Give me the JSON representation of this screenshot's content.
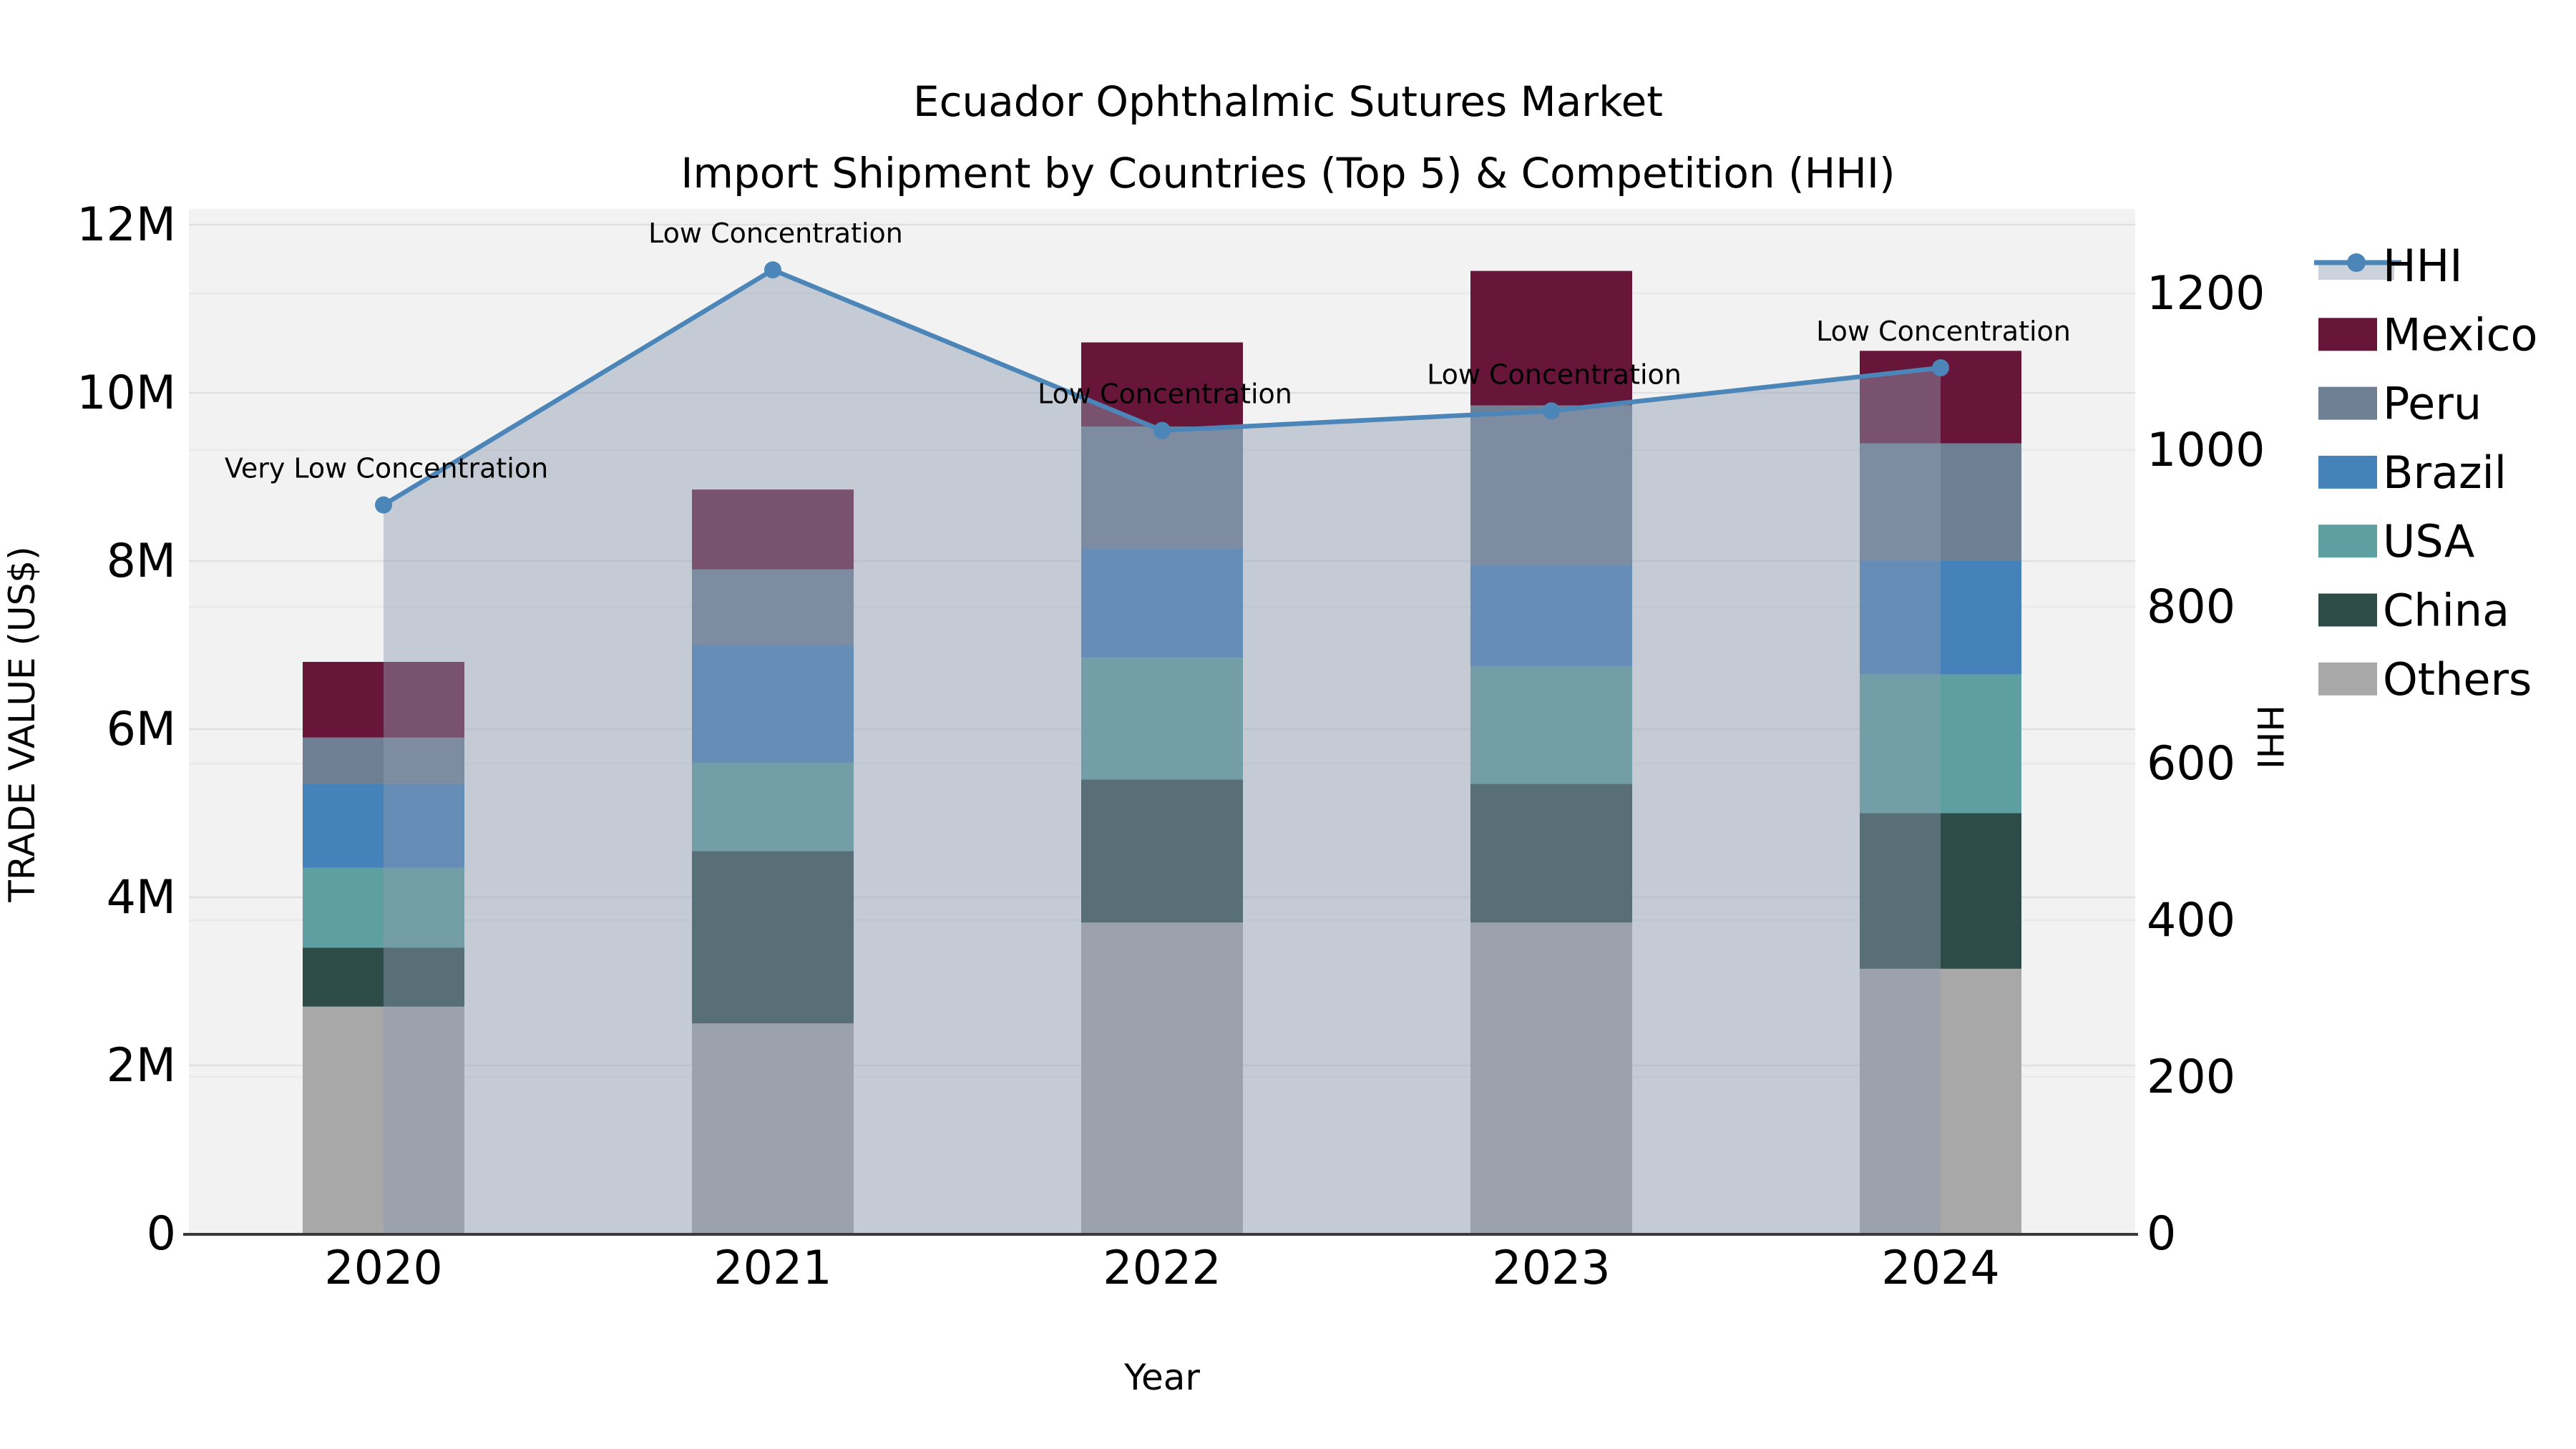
{
  "chart_data": {
    "type": "combo_stacked_bar_line",
    "title": "Ecuador Ophthalmic Sutures Market",
    "subtitle": "Import Shipment by Countries (Top 5) & Competition (HHI)",
    "xlabel": "Year",
    "ylabel_left": "TRADE VALUE (US$)",
    "ylabel_right": "HHI",
    "categories": [
      "2020",
      "2021",
      "2022",
      "2023",
      "2024"
    ],
    "bar_unit": "USD millions (left axis)",
    "series": [
      {
        "name": "Others",
        "color": "#A8A8A8",
        "values": [
          2.7,
          2.5,
          3.7,
          3.7,
          3.15
        ]
      },
      {
        "name": "China",
        "color": "#2D4C48",
        "values": [
          0.7,
          2.05,
          1.7,
          1.65,
          1.85
        ]
      },
      {
        "name": "USA",
        "color": "#5EA0A1",
        "values": [
          0.95,
          1.05,
          1.45,
          1.4,
          1.65
        ]
      },
      {
        "name": "Brazil",
        "color": "#4482B9",
        "values": [
          1.0,
          1.4,
          1.3,
          1.2,
          1.35
        ]
      },
      {
        "name": "Peru",
        "color": "#6F8094",
        "values": [
          0.55,
          0.9,
          1.45,
          1.9,
          1.4
        ]
      },
      {
        "name": "Mexico",
        "color": "#67163A",
        "values": [
          0.9,
          0.95,
          1.0,
          1.6,
          1.1
        ]
      }
    ],
    "stack_totals": [
      6.8,
      8.85,
      10.6,
      11.45,
      10.5
    ],
    "hhi": {
      "name": "HHI",
      "line_color": "#4C86B9",
      "area_fill": "rgba(143,155,177,0.45)",
      "values": [
        930,
        1230,
        1025,
        1050,
        1105
      ],
      "annotations": [
        "Very Low Concentration",
        "Low Concentration",
        "Low Concentration",
        "Low Concentration",
        "Low Concentration"
      ]
    },
    "left_axis": {
      "ticks": [
        "0",
        "2M",
        "4M",
        "6M",
        "8M",
        "10M",
        "12M"
      ],
      "tick_values": [
        0,
        2,
        4,
        6,
        8,
        10,
        12
      ],
      "range": [
        0,
        12.2
      ]
    },
    "right_axis": {
      "ticks": [
        "0",
        "200",
        "400",
        "600",
        "800",
        "1000",
        "1200"
      ],
      "tick_values": [
        0,
        200,
        400,
        600,
        800,
        1000,
        1200
      ],
      "range": [
        0,
        1310
      ]
    },
    "legend": [
      {
        "label": "HHI",
        "type": "line",
        "color": "#4C86B9"
      },
      {
        "label": "Mexico",
        "type": "box",
        "color": "#67163A"
      },
      {
        "label": "Peru",
        "type": "box",
        "color": "#6F8094"
      },
      {
        "label": "Brazil",
        "type": "box",
        "color": "#4482B9"
      },
      {
        "label": "USA",
        "type": "box",
        "color": "#5EA0A1"
      },
      {
        "label": "China",
        "type": "box",
        "color": "#2D4C48"
      },
      {
        "label": "Others",
        "type": "box",
        "color": "#A8A8A8"
      }
    ],
    "legend_position": "outside-top-right",
    "grid": true,
    "plot_bg": "#F2F2F3"
  },
  "colors": {
    "figure_bg": "#FFFFFF",
    "grid_left_axis": "#E0E0E4",
    "grid_right_axis": "#E9E9EC",
    "baseline": "#3A3A3A",
    "text": "#000000"
  }
}
